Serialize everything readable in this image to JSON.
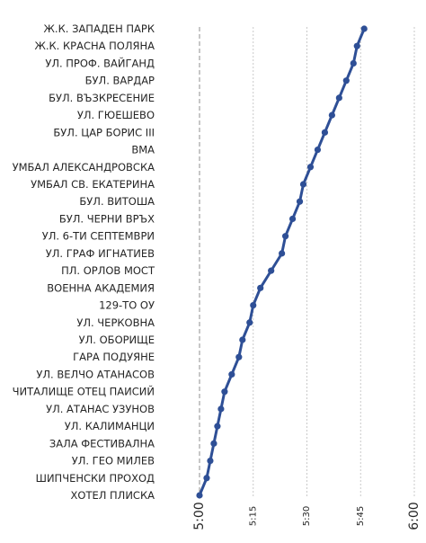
{
  "chart_data": {
    "type": "line",
    "title": "",
    "xlabel": "",
    "ylabel": "",
    "x_unit": "time (H:MM)",
    "xlim": [
      "5:00",
      "6:00"
    ],
    "grid": true,
    "legend": "none",
    "color": "#2e4f96",
    "x_ticks": [
      {
        "label": "5:00",
        "minute": 0,
        "style": "major"
      },
      {
        "label": "5:15",
        "minute": 15,
        "style": "minor"
      },
      {
        "label": "5:30",
        "minute": 30,
        "style": "minor"
      },
      {
        "label": "5:45",
        "minute": 45,
        "style": "minor"
      },
      {
        "label": "6:00",
        "minute": 60,
        "style": "major"
      }
    ],
    "series": [
      {
        "points": [
          {
            "stop": "ХОТЕЛ ПЛИСКА",
            "time": "5:00"
          },
          {
            "stop": "ШИПЧЕНСКИ ПРОХОД",
            "time": "5:02"
          },
          {
            "stop": "УЛ. ГЕО МИЛЕВ",
            "time": "5:03"
          },
          {
            "stop": "ЗАЛА ФЕСТИВАЛНА",
            "time": "5:04"
          },
          {
            "stop": "УЛ. КАЛИМАНЦИ",
            "time": "5:05"
          },
          {
            "stop": "УЛ. АТАНАС УЗУНОВ",
            "time": "5:06"
          },
          {
            "stop": "ЧИТАЛИЩЕ ОТЕЦ ПАИСИЙ",
            "time": "5:07"
          },
          {
            "stop": "УЛ. ВЕЛЧО АТАНАСОВ",
            "time": "5:09"
          },
          {
            "stop": "ГАРА ПОДУЯНЕ",
            "time": "5:11"
          },
          {
            "stop": "УЛ. ОБОРИЩЕ",
            "time": "5:12"
          },
          {
            "stop": "УЛ. ЧЕРКОВНА",
            "time": "5:14"
          },
          {
            "stop": "129-ТО ОУ",
            "time": "5:15"
          },
          {
            "stop": "ВОЕННА АКАДЕМИЯ",
            "time": "5:17"
          },
          {
            "stop": "ПЛ. ОРЛОВ МОСТ",
            "time": "5:20"
          },
          {
            "stop": "УЛ. ГРАФ ИГНАТИЕВ",
            "time": "5:23"
          },
          {
            "stop": "УЛ. 6-ТИ СЕПТЕМВРИ",
            "time": "5:24"
          },
          {
            "stop": "БУЛ. ЧЕРНИ ВРЪХ",
            "time": "5:26"
          },
          {
            "stop": "БУЛ. ВИТОША",
            "time": "5:28"
          },
          {
            "stop": "УМБАЛ СВ. ЕКАТЕРИНА",
            "time": "5:29"
          },
          {
            "stop": "УМБАЛ АЛЕКСАНДРОВСКА",
            "time": "5:31"
          },
          {
            "stop": "ВМА",
            "time": "5:33"
          },
          {
            "stop": "БУЛ. ЦАР БОРИС III",
            "time": "5:35"
          },
          {
            "stop": "УЛ. ГЮЕШЕВО",
            "time": "5:37"
          },
          {
            "stop": "БУЛ. ВЪЗКРЕСЕНИЕ",
            "time": "5:39"
          },
          {
            "stop": "БУЛ. ВАРДАР",
            "time": "5:41"
          },
          {
            "stop": "УЛ. ПРОФ. ВАЙГАНД",
            "time": "5:43"
          },
          {
            "stop": "Ж.К. КРАСНА ПОЛЯНА",
            "time": "5:44"
          },
          {
            "stop": "Ж.К. ЗАПАДЕН ПАРК",
            "time": "5:46"
          }
        ]
      }
    ]
  }
}
